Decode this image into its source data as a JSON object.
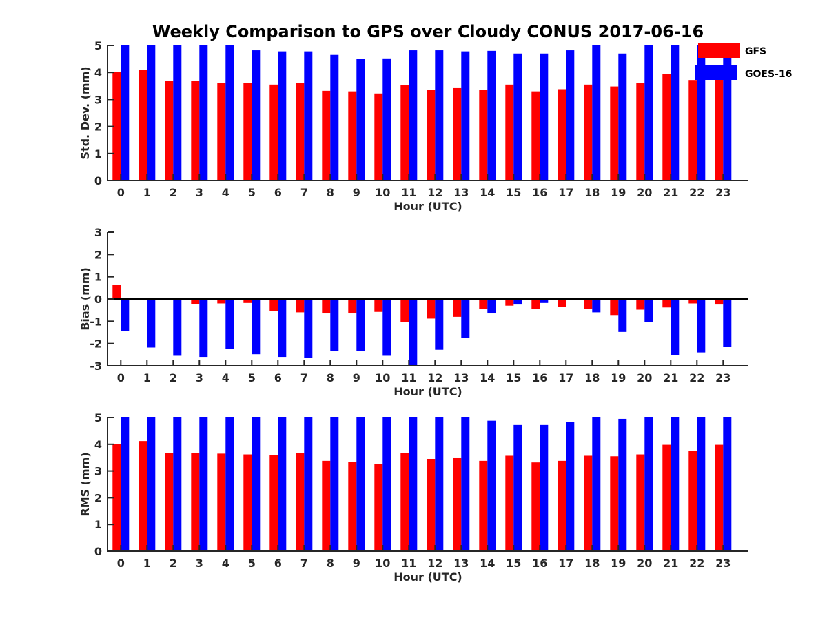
{
  "title": "Weekly Comparison to GPS over Cloudy CONUS 2017-06-16",
  "colors": {
    "gfs": "#ff0000",
    "goes16": "#0000ff",
    "axis": "#262626"
  },
  "legend": [
    {
      "label": "GFS",
      "color": "#ff0000"
    },
    {
      "label": "GOES-16",
      "color": "#0000ff"
    }
  ],
  "chart_data": [
    {
      "type": "bar",
      "ylabel": "Std. Dev. (mm)",
      "xlabel": "Hour (UTC)",
      "ylim": [
        0,
        5
      ],
      "yticks": [
        0,
        1,
        2,
        3,
        4,
        5
      ],
      "categories": [
        "0",
        "1",
        "2",
        "3",
        "4",
        "5",
        "6",
        "7",
        "8",
        "9",
        "10",
        "11",
        "12",
        "13",
        "14",
        "15",
        "16",
        "17",
        "18",
        "19",
        "20",
        "21",
        "22",
        "23"
      ],
      "series": [
        {
          "name": "GFS",
          "values": [
            4.02,
            4.1,
            3.68,
            3.68,
            3.62,
            3.6,
            3.55,
            3.62,
            3.32,
            3.3,
            3.22,
            3.52,
            3.35,
            3.42,
            3.35,
            3.55,
            3.3,
            3.38,
            3.55,
            3.48,
            3.6,
            3.95,
            3.72,
            3.75
          ]
        },
        {
          "name": "GOES-16",
          "values": [
            5,
            5,
            5,
            5,
            5,
            4.82,
            4.78,
            4.78,
            4.65,
            4.5,
            4.52,
            4.82,
            4.82,
            4.78,
            4.8,
            4.7,
            4.7,
            4.82,
            5,
            4.7,
            5,
            5,
            5,
            4.6
          ]
        }
      ]
    },
    {
      "type": "bar",
      "ylabel": "Bias (mm)",
      "xlabel": "Hour (UTC)",
      "ylim": [
        -3,
        3
      ],
      "yticks": [
        -3,
        -2,
        -1,
        0,
        1,
        2,
        3
      ],
      "categories": [
        "0",
        "1",
        "2",
        "3",
        "4",
        "5",
        "6",
        "7",
        "8",
        "9",
        "10",
        "11",
        "12",
        "13",
        "14",
        "15",
        "16",
        "17",
        "18",
        "19",
        "20",
        "21",
        "22",
        "23"
      ],
      "series": [
        {
          "name": "GFS",
          "values": [
            0.62,
            0.02,
            0.02,
            -0.22,
            -0.2,
            -0.18,
            -0.55,
            -0.6,
            -0.65,
            -0.65,
            -0.58,
            -1.05,
            -0.88,
            -0.8,
            -0.45,
            -0.3,
            -0.45,
            -0.35,
            -0.45,
            -0.72,
            -0.48,
            -0.38,
            -0.2,
            -0.25
          ]
        },
        {
          "name": "GOES-16",
          "values": [
            -1.45,
            -2.18,
            -2.55,
            -2.6,
            -2.25,
            -2.48,
            -2.6,
            -2.65,
            -2.35,
            -2.35,
            -2.55,
            -3,
            -2.28,
            -1.75,
            -0.65,
            -0.25,
            -0.18,
            0.02,
            -0.6,
            -1.48,
            -1.05,
            -2.52,
            -2.4,
            -2.15
          ]
        }
      ]
    },
    {
      "type": "bar",
      "ylabel": "RMS (mm)",
      "xlabel": "Hour (UTC)",
      "ylim": [
        0,
        5
      ],
      "yticks": [
        0,
        1,
        2,
        3,
        4,
        5
      ],
      "categories": [
        "0",
        "1",
        "2",
        "3",
        "4",
        "5",
        "6",
        "7",
        "8",
        "9",
        "10",
        "11",
        "12",
        "13",
        "14",
        "15",
        "16",
        "17",
        "18",
        "19",
        "20",
        "21",
        "22",
        "23"
      ],
      "series": [
        {
          "name": "GFS",
          "values": [
            4.02,
            4.12,
            3.68,
            3.68,
            3.65,
            3.62,
            3.6,
            3.68,
            3.38,
            3.33,
            3.25,
            3.68,
            3.45,
            3.48,
            3.38,
            3.57,
            3.32,
            3.38,
            3.57,
            3.55,
            3.62,
            3.98,
            3.75,
            3.98
          ]
        },
        {
          "name": "GOES-16",
          "values": [
            5,
            5,
            5,
            5,
            5,
            5,
            5,
            5,
            5,
            5,
            5,
            5,
            5,
            5,
            4.88,
            4.72,
            4.72,
            4.82,
            5,
            4.95,
            5,
            5,
            5,
            5
          ]
        }
      ]
    }
  ]
}
